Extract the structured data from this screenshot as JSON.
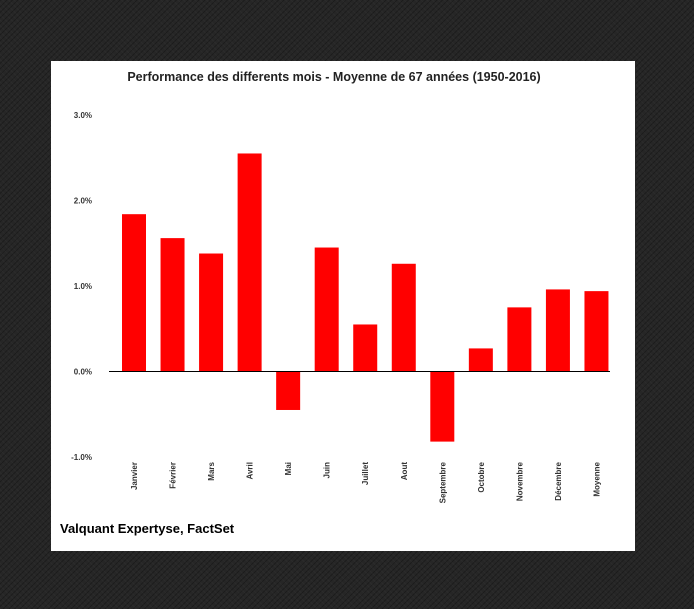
{
  "chart_data": {
    "type": "bar",
    "title": "Performance des differents mois  - Moyenne de 67 années (1950-2016)",
    "categories": [
      "Janvier",
      "Février",
      "Mars",
      "Avril",
      "Mai",
      "Juin",
      "Juillet",
      "Aout",
      "Septembre",
      "Octobre",
      "Novembre",
      "Décembre",
      "Moyenne"
    ],
    "series": [
      {
        "values": [
          1.84,
          1.56,
          1.38,
          2.55,
          -0.45,
          1.45,
          0.55,
          1.26,
          -0.82,
          0.27,
          0.75,
          0.96,
          0.94
        ]
      }
    ],
    "yticks": [
      "3.0%",
      "2.0%",
      "1.0%",
      "0.0%",
      "-1.0%"
    ],
    "ylim": [
      -1.0,
      3.0
    ],
    "xlabel": "",
    "ylabel": "",
    "grid": false,
    "bar_color": "#ff0000"
  },
  "source": "Valquant Expertyse, FactSet"
}
